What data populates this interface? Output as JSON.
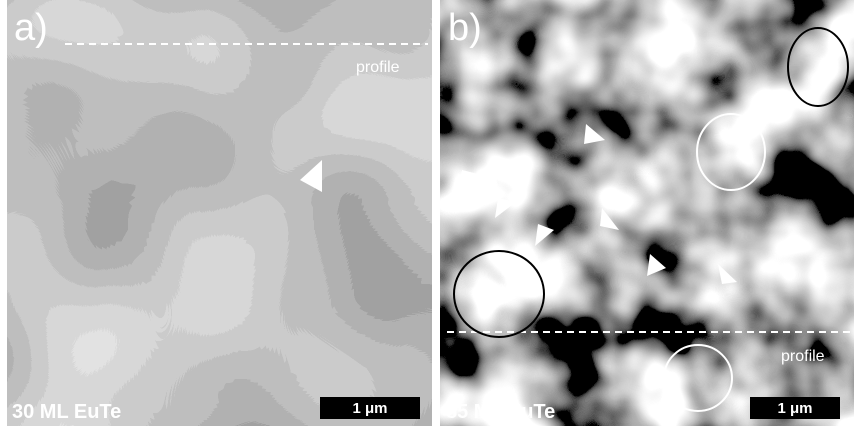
{
  "panels": [
    {
      "label": "a)",
      "profile_label": "profile",
      "caption": "30 ML EuTe",
      "scale_bar": "1 μm"
    },
    {
      "label": "b)",
      "profile_label": "profile",
      "caption": "85 ML EuTe",
      "scale_bar": "1 μm"
    }
  ]
}
